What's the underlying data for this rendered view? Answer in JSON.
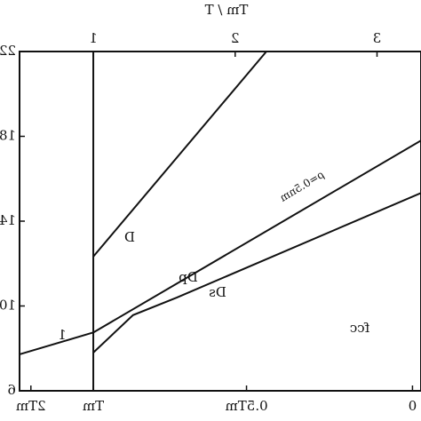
{
  "chart_data": {
    "type": "line",
    "title": "Tm / T",
    "xlim": [
      3.31,
      0.48
    ],
    "ylim": [
      6,
      22
    ],
    "xticks": [
      1,
      2,
      3
    ],
    "xticks_bottom": [
      {
        "value": 0.56,
        "label": "2Tm"
      },
      {
        "value": 1,
        "label": "Tm"
      },
      {
        "value": 2.08,
        "label": "0.5Tm"
      },
      {
        "value": 3.25,
        "label": "0"
      }
    ],
    "yticks": [
      6,
      10,
      14,
      18,
      22
    ],
    "color": "#111111",
    "series": [
      {
        "name": "1",
        "x": [
          0.48,
          1
        ],
        "values": [
          7.72,
          8.75
        ]
      },
      {
        "name": "D",
        "x": [
          1,
          2.22
        ],
        "values": [
          12.33,
          22
        ]
      },
      {
        "name": "Dp",
        "x": [
          1,
          3.31
        ],
        "values": [
          8.75,
          17.8
        ]
      },
      {
        "name": "Ds",
        "x": [
          1,
          1.28,
          1.59,
          3.31
        ],
        "values": [
          7.8,
          9.57,
          10.4,
          15.33
        ]
      }
    ],
    "annotations": [
      "ρ=0.5nm",
      "fcc"
    ]
  }
}
